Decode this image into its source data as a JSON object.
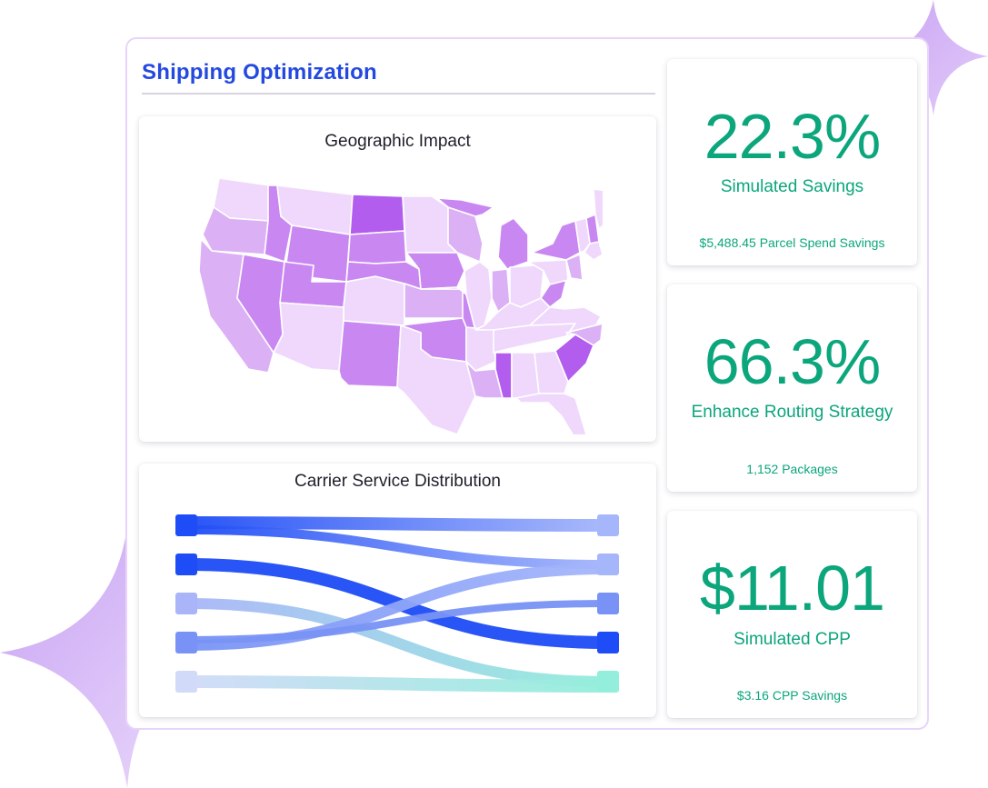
{
  "page": {
    "title": "Shipping Optimization"
  },
  "geographic_impact": {
    "title": "Geographic Impact",
    "scale_colors": [
      "#efd8fb",
      "#dcb0f5",
      "#c988f1",
      "#b25ded"
    ]
  },
  "carrier_distribution": {
    "title": "Carrier Service Distribution",
    "flows": [
      {
        "from": 1,
        "to": 1,
        "weight": 14,
        "from_color": "#1e4cf6",
        "to_color": "#a5b6fb"
      },
      {
        "from": 1,
        "to": 2,
        "weight": 10,
        "from_color": "#1e4cf6",
        "to_color": "#a5b6fb"
      },
      {
        "from": 2,
        "to": 4,
        "weight": 14,
        "from_color": "#1e4cf6",
        "to_color": "#1e4cf6"
      },
      {
        "from": 3,
        "to": 5,
        "weight": 12,
        "from_color": "#a9b5f8",
        "to_color": "#93eedb"
      },
      {
        "from": 4,
        "to": 2,
        "weight": 12,
        "from_color": "#7893f5",
        "to_color": "#a5b6fb"
      },
      {
        "from": 4,
        "to": 3,
        "weight": 8,
        "from_color": "#7893f5",
        "to_color": "#7893f5"
      },
      {
        "from": 5,
        "to": 5,
        "weight": 14,
        "from_color": "#d1daf8",
        "to_color": "#93eedb"
      }
    ],
    "left_node_colors": [
      "#1e4cf6",
      "#1e4cf6",
      "#a9b5f8",
      "#7893f5",
      "#d1daf8"
    ],
    "right_node_colors": [
      "#a5b6fb",
      "#a5b6fb",
      "#7893f5",
      "#1e4cf6",
      "#93eedb"
    ]
  },
  "kpis": [
    {
      "value": "22.3%",
      "label": "Simulated Savings",
      "sub": "$5,488.45 Parcel Spend Savings"
    },
    {
      "value": "66.3%",
      "label": "Enhance Routing Strategy",
      "sub": "1,152 Packages"
    },
    {
      "value": "$11.01",
      "label": "Simulated CPP",
      "sub": "$3.16 CPP Savings"
    }
  ],
  "colors": {
    "accent_title": "#2449e0",
    "kpi_green": "#0ba67c",
    "panel_border": "#e8d4fb",
    "sparkle": "#d6b8f6"
  }
}
